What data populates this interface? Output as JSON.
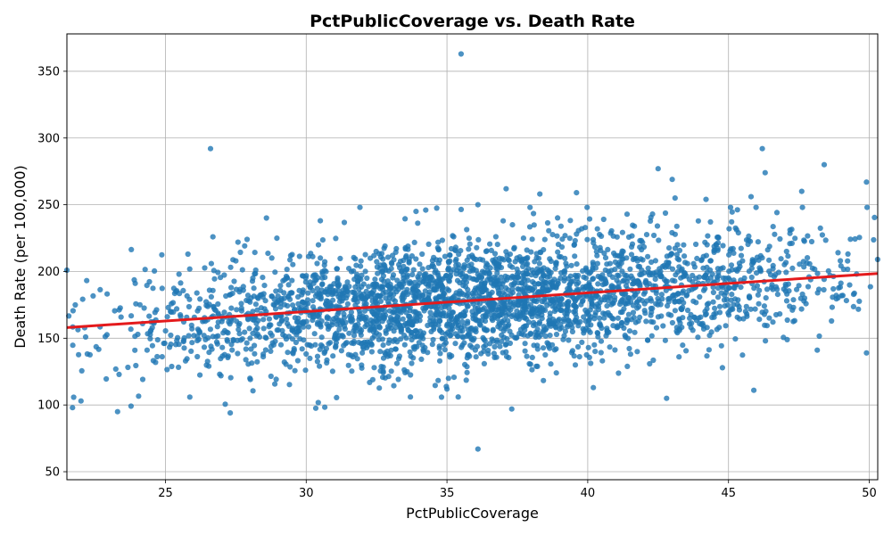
{
  "chart_data": {
    "type": "scatter",
    "title": "PctPublicCoverage vs. Death Rate",
    "xlabel": "PctPublicCoverage",
    "ylabel": "Death Rate (per 100,000)",
    "xlim": [
      21.5,
      50.3
    ],
    "ylim": [
      44,
      378
    ],
    "xticks": [
      25,
      30,
      35,
      40,
      45,
      50
    ],
    "yticks": [
      50,
      100,
      150,
      200,
      250,
      300,
      350
    ],
    "grid": true,
    "point_color": "#1f77b4",
    "trend_color": "#e41a1c",
    "trendline": {
      "x": [
        21.5,
        50.3
      ],
      "y": [
        158,
        198.5
      ]
    },
    "n_points": 3047,
    "sample_points": [
      [
        35.5,
        363
      ],
      [
        26.6,
        292
      ],
      [
        46.2,
        292
      ],
      [
        48.4,
        280
      ],
      [
        42.5,
        277
      ],
      [
        46.3,
        274
      ],
      [
        43.0,
        269
      ],
      [
        49.9,
        267
      ],
      [
        37.1,
        262
      ],
      [
        47.6,
        260
      ],
      [
        39.6,
        259
      ],
      [
        38.3,
        258
      ],
      [
        45.8,
        256
      ],
      [
        43.1,
        255
      ],
      [
        44.2,
        254
      ],
      [
        36.1,
        250
      ],
      [
        42.3,
        243
      ],
      [
        33.9,
        245
      ],
      [
        30.5,
        238
      ],
      [
        27.9,
        224
      ],
      [
        25.8,
        213
      ],
      [
        21.5,
        201
      ],
      [
        23.3,
        95
      ],
      [
        27.3,
        94
      ],
      [
        37.3,
        97
      ],
      [
        21.7,
        98
      ],
      [
        22.0,
        103
      ],
      [
        35.4,
        106
      ],
      [
        36.1,
        67
      ],
      [
        42.8,
        105
      ],
      [
        45.9,
        111
      ],
      [
        49.9,
        139
      ],
      [
        40.2,
        113
      ],
      [
        33.7,
        106
      ],
      [
        28.0,
        120
      ]
    ]
  }
}
